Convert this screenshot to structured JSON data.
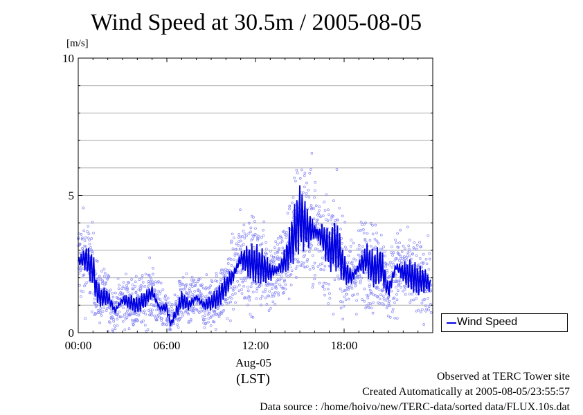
{
  "chart_data": {
    "type": "scatter",
    "title": "Wind Speed at 30.5m / 2005-08-05",
    "ylabel": "[m/s]",
    "xlabel": "(LST)",
    "date_label": "Aug-05",
    "ylim": [
      0,
      10
    ],
    "xlim_hours": [
      0,
      23.9
    ],
    "y_ticks": [
      "0",
      "5",
      "10"
    ],
    "x_ticks": [
      "00:00",
      "06:00",
      "12:00",
      "18:00"
    ],
    "grid": true,
    "legend_position": "bottom-right-outside",
    "series": [
      {
        "name": "Wind Speed",
        "color": "#0000e0",
        "scatter_color": "#8888f4",
        "line_hours": [
          0,
          0.5,
          0.75,
          1.0,
          1.25,
          1.5,
          2,
          2.5,
          3,
          3.5,
          4,
          4.5,
          5,
          5.5,
          6,
          6.25,
          6.5,
          7,
          7.5,
          8,
          8.5,
          9,
          9.5,
          10,
          10.5,
          11,
          11.5,
          12,
          12.5,
          13,
          13.5,
          14,
          14.5,
          15,
          15.5,
          16,
          16.5,
          17,
          17.5,
          18,
          18.5,
          19,
          19.5,
          20,
          20.5,
          21,
          21.5,
          22,
          22.5,
          23,
          23.5,
          23.9
        ],
        "line_values": [
          2.6,
          2.7,
          2.5,
          2.3,
          1.5,
          1.3,
          1.3,
          0.8,
          1.2,
          1.1,
          1.0,
          1.2,
          1.5,
          0.9,
          0.9,
          0.3,
          0.6,
          1.2,
          1.0,
          1.3,
          1.0,
          1.1,
          1.3,
          1.7,
          2.1,
          2.7,
          2.6,
          2.5,
          2.4,
          2.2,
          2.3,
          2.6,
          3.4,
          4.2,
          3.8,
          3.7,
          3.5,
          3.0,
          3.2,
          2.3,
          2.0,
          2.4,
          2.7,
          2.3,
          2.5,
          1.5,
          2.4,
          2.2,
          2.1,
          1.9,
          1.9,
          1.7
        ]
      }
    ]
  },
  "footer": {
    "line1": "Observed at TERC Tower site",
    "line2": "Created Automatically at 2005-08-05/23:55:57",
    "line3": "Data source : /home/hoivo/new/TERC-data/sorted  data/FLUX.10s.dat"
  }
}
